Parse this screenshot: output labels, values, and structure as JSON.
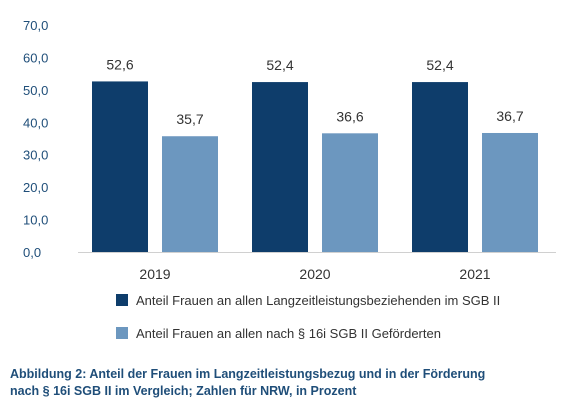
{
  "chart_data": {
    "type": "bar",
    "categories": [
      "2019",
      "2020",
      "2021"
    ],
    "series": [
      {
        "name": "Anteil Frauen an allen Langzeitleistungsbeziehenden im SGB II",
        "values": [
          52.6,
          52.4,
          52.4
        ],
        "labels": [
          "52,6",
          "52,4",
          "52,4"
        ],
        "color": "#0e3d6b"
      },
      {
        "name": "Anteil Frauen an allen nach § 16i SGB II Geförderten",
        "values": [
          35.7,
          36.6,
          36.7
        ],
        "labels": [
          "35,7",
          "36,6",
          "36,7"
        ],
        "color": "#6c97bf"
      }
    ],
    "ylim": [
      0,
      70
    ],
    "yticks": [
      0,
      10,
      20,
      30,
      40,
      50,
      60,
      70
    ],
    "ytick_labels": [
      "0,0",
      "10,0",
      "20,0",
      "30,0",
      "40,0",
      "50,0",
      "60,0",
      "70,0"
    ],
    "grid": false,
    "legend_position": "bottom",
    "axis_color": "#1f4e79",
    "text_color": "#333333"
  },
  "caption": {
    "line1": "Abbildung 2: Anteil der Frauen im Langzeitleistungsbezug und in der Förderung",
    "line2": "nach § 16i SGB II im Vergleich; Zahlen für NRW, in Prozent"
  }
}
